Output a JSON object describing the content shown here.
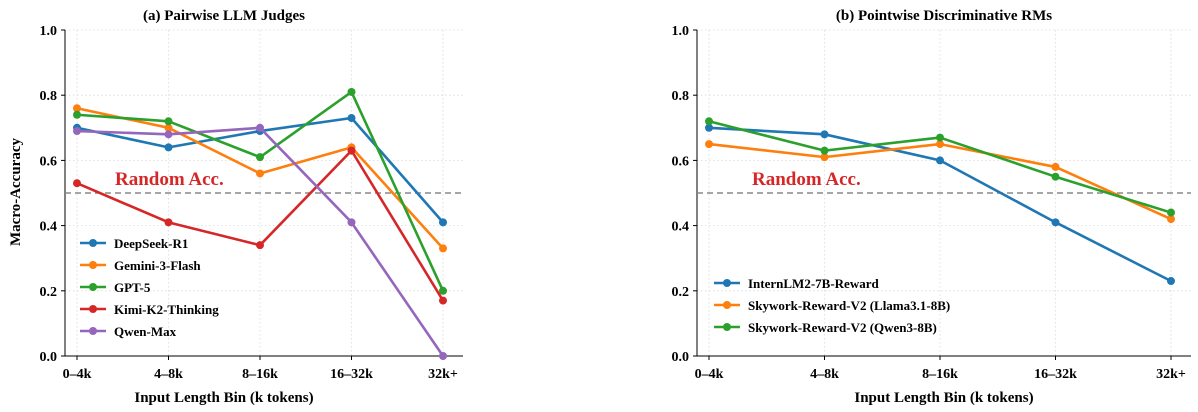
{
  "chart_data": [
    {
      "type": "line",
      "title": "(a) Pairwise LLM Judges",
      "xlabel": "Input Length Bin (k tokens)",
      "ylabel": "Macro-Accuracy",
      "categories": [
        "0–4k",
        "4–8k",
        "8–16k",
        "16–32k",
        "32k+"
      ],
      "ylim": [
        0,
        1.0
      ],
      "yticks": [
        "0.0",
        "0.2",
        "0.4",
        "0.6",
        "0.8",
        "1.0"
      ],
      "grid": true,
      "legend_position": "lower-left",
      "reference_line": {
        "y": 0.5,
        "label": "Random Acc.",
        "color": "#d62728"
      },
      "series": [
        {
          "name": "DeepSeek-R1",
          "color": "#1f77b4",
          "values": [
            0.7,
            0.64,
            0.69,
            0.73,
            0.41
          ]
        },
        {
          "name": "Gemini-3-Flash",
          "color": "#ff7f0e",
          "values": [
            0.76,
            0.7,
            0.56,
            0.64,
            0.33
          ]
        },
        {
          "name": "GPT-5",
          "color": "#2ca02c",
          "values": [
            0.74,
            0.72,
            0.61,
            0.81,
            0.2
          ]
        },
        {
          "name": "Kimi-K2-Thinking",
          "color": "#d62728",
          "values": [
            0.53,
            0.41,
            0.34,
            0.63,
            0.17
          ]
        },
        {
          "name": "Qwen-Max",
          "color": "#9467bd",
          "values": [
            0.69,
            0.68,
            0.7,
            0.41,
            0.0
          ]
        }
      ]
    },
    {
      "type": "line",
      "title": "(b) Pointwise Discriminative RMs",
      "xlabel": "Input Length Bin (k tokens)",
      "ylabel": "",
      "categories": [
        "0–4k",
        "4–8k",
        "8–16k",
        "16–32k",
        "32k+"
      ],
      "ylim": [
        0,
        1.0
      ],
      "yticks": [
        "0.0",
        "0.2",
        "0.4",
        "0.6",
        "0.8",
        "1.0"
      ],
      "grid": true,
      "legend_position": "lower-left",
      "reference_line": {
        "y": 0.5,
        "label": "Random Acc.",
        "color": "#d62728"
      },
      "series": [
        {
          "name": "InternLM2-7B-Reward",
          "color": "#1f77b4",
          "values": [
            0.7,
            0.68,
            0.6,
            0.41,
            0.23
          ]
        },
        {
          "name": "Skywork-Reward-V2 (Llama3.1-8B)",
          "color": "#ff7f0e",
          "values": [
            0.65,
            0.61,
            0.65,
            0.58,
            0.42
          ]
        },
        {
          "name": "Skywork-Reward-V2 (Qwen3-8B)",
          "color": "#2ca02c",
          "values": [
            0.72,
            0.63,
            0.67,
            0.55,
            0.44
          ]
        }
      ]
    }
  ]
}
